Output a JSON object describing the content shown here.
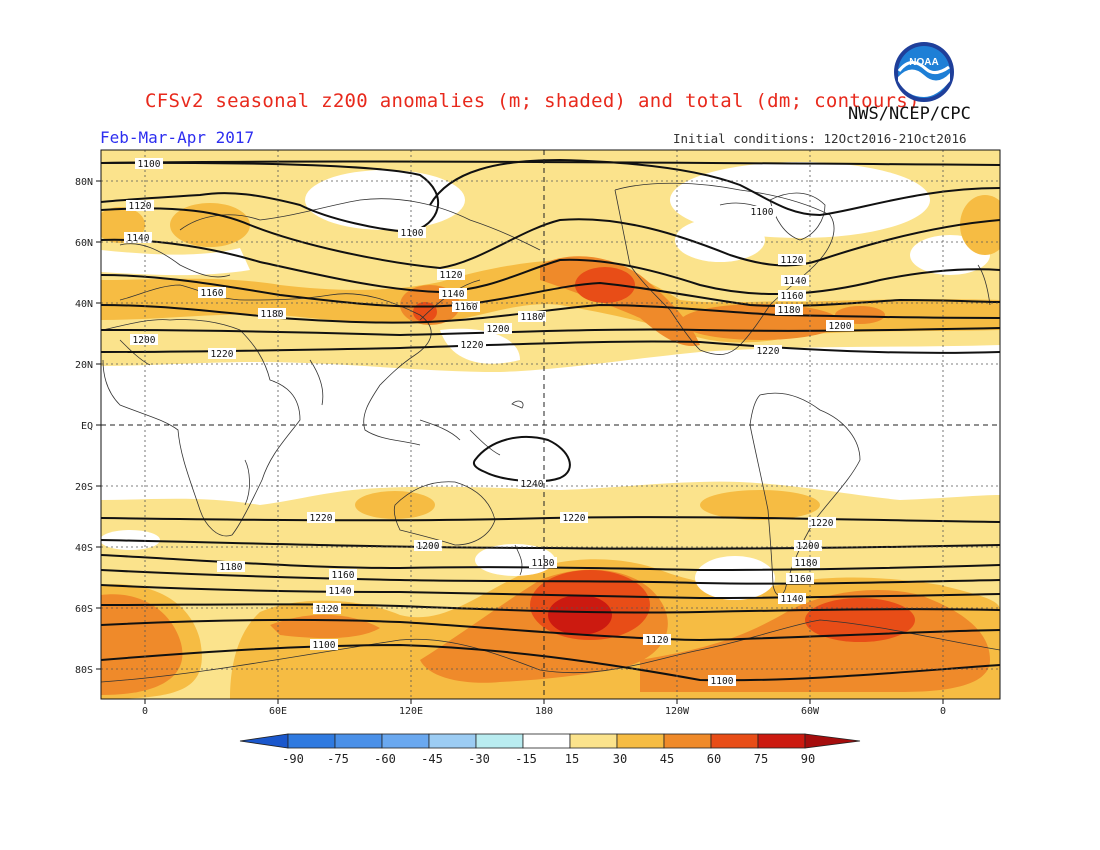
{
  "header": {
    "title": "CFSv2 seasonal z200 anomalies (m; shaded) and total (dm; contours)",
    "agency": "NWS/NCEP/CPC",
    "season": "Feb-Mar-Apr 2017",
    "initial_conditions": "Initial conditions: 12Oct2016-21Oct2016",
    "logo_text": "NOAA"
  },
  "map": {
    "lat_ticks": [
      "80N",
      "60N",
      "40N",
      "20N",
      "EQ",
      "20S",
      "40S",
      "60S",
      "80S"
    ],
    "lon_ticks": [
      "0",
      "60E",
      "120E",
      "180",
      "120W",
      "60W",
      "0"
    ]
  },
  "contours": [
    {
      "value": 1100,
      "label": "1100"
    },
    {
      "value": 1120,
      "label": "1120"
    },
    {
      "value": 1140,
      "label": "1140"
    },
    {
      "value": 1160,
      "label": "1160"
    },
    {
      "value": 1180,
      "label": "1180"
    },
    {
      "value": 1200,
      "label": "1200"
    },
    {
      "value": 1220,
      "label": "1220"
    },
    {
      "value": 1240,
      "label": "1240"
    }
  ],
  "colorbar": {
    "labels": [
      "-90",
      "-75",
      "-60",
      "-45",
      "-30",
      "-15",
      "15",
      "30",
      "45",
      "60",
      "75",
      "90"
    ],
    "colors": [
      "#1a57cc",
      "#2f7ae0",
      "#4a90e8",
      "#6aa8ef",
      "#9cccf3",
      "#b9ecf0",
      "#ffffff",
      "#fbe38c",
      "#f6bc43",
      "#ef8a2a",
      "#e84d17",
      "#cc1a10",
      "#a50d0d"
    ]
  },
  "shading_colors": {
    "15_30": "#fbe38c",
    "30_45": "#f6bc43",
    "45_60": "#ef8a2a",
    "60_75": "#e84d17",
    "75_90": "#cc1a10"
  }
}
